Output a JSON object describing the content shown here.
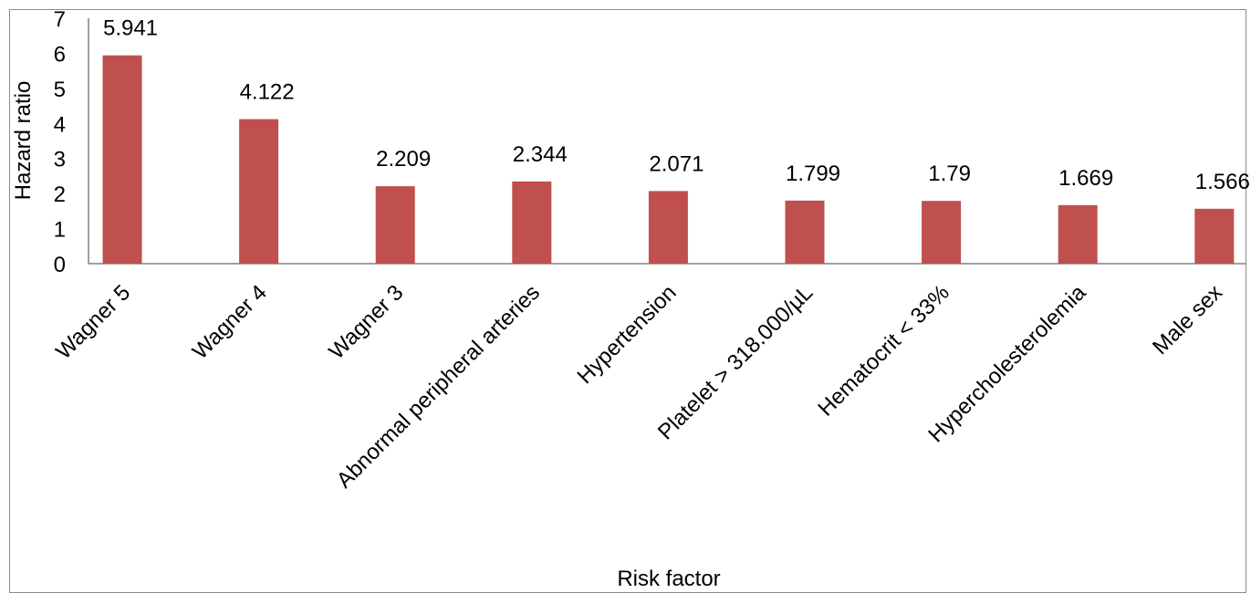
{
  "chart_data": {
    "type": "bar",
    "categories": [
      "Wagner 5",
      "Wagner 4",
      "Wagner 3",
      "Abnormal peripheral arteries",
      "Hypertension",
      "Platelet > 318.000/µL",
      "Hematocrit < 33%",
      "Hypercholesterolemia",
      "Male sex"
    ],
    "values": [
      5.941,
      4.122,
      2.209,
      2.344,
      2.071,
      1.799,
      1.79,
      1.669,
      1.566
    ],
    "value_labels": [
      "5.941",
      "4.122",
      "2.209",
      "2.344",
      "2.071",
      "1.799",
      "1.79",
      "1.669",
      "1.566"
    ],
    "title": "",
    "xlabel": "Risk factor",
    "ylabel": "Hazard ratio",
    "ylim": [
      0,
      7
    ],
    "yticks": [
      "0",
      "1",
      "2",
      "3",
      "4",
      "5",
      "6",
      "7"
    ],
    "grid": false,
    "legend": "none",
    "bar_color": "#c0504d"
  }
}
